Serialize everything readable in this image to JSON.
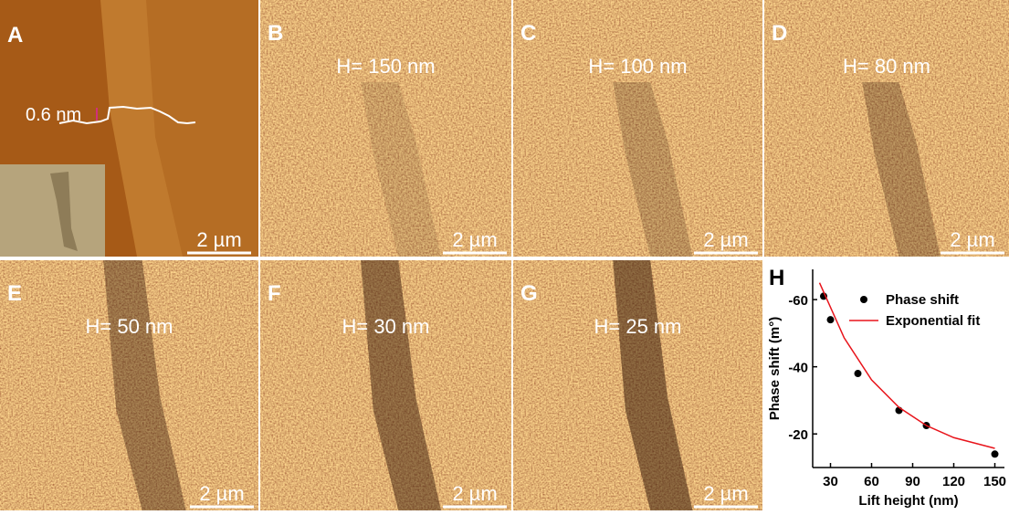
{
  "panels": [
    {
      "label": "A",
      "annotation": "0.6 nm",
      "scale_bar": "2 µm"
    },
    {
      "label": "B",
      "lift_height": "H= 150 nm",
      "scale_bar": "2 µm"
    },
    {
      "label": "C",
      "lift_height": "H= 100 nm",
      "scale_bar": "2 µm"
    },
    {
      "label": "D",
      "lift_height": "H= 80 nm",
      "scale_bar": "2 µm"
    },
    {
      "label": "E",
      "lift_height": "H= 50 nm",
      "scale_bar": "2 µm"
    },
    {
      "label": "F",
      "lift_height": "H= 30 nm",
      "scale_bar": "2 µm"
    },
    {
      "label": "G",
      "lift_height": "H= 25 nm",
      "scale_bar": "2 µm"
    }
  ],
  "chart_data": {
    "type": "scatter",
    "label": "H",
    "x_label": "Lift height (nm)",
    "y_label": "Phase shift (m°)",
    "xlim": [
      17,
      157
    ],
    "xticks": [
      30,
      60,
      90,
      120,
      150
    ],
    "ylim": [
      -69,
      -10
    ],
    "yticks": [
      -60,
      -40,
      -20
    ],
    "invert_y": true,
    "series": [
      {
        "name": "Phase shift",
        "color": "#000000",
        "mode": "markers",
        "x": [
          25,
          30,
          50,
          80,
          100,
          150
        ],
        "values": [
          -61,
          -54,
          -38,
          -27,
          -22.5,
          -14
        ]
      },
      {
        "name": "Exponential fit",
        "color": "#e8141b",
        "mode": "line",
        "x": [
          22,
          40,
          60,
          80,
          100,
          120,
          150
        ],
        "values": [
          -65,
          -48.6,
          -36.1,
          -27.9,
          -22.5,
          -18.9,
          -15.7
        ]
      }
    ]
  }
}
